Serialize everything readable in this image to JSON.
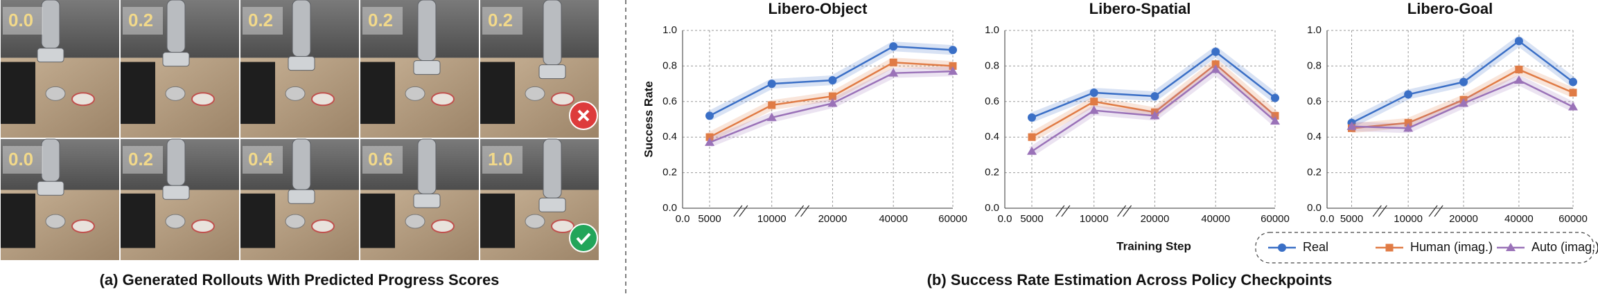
{
  "rollouts": {
    "rows": [
      {
        "scores": [
          "0.0",
          "0.2",
          "0.2",
          "0.2",
          "0.2"
        ],
        "outcome": "failure"
      },
      {
        "scores": [
          "0.0",
          "0.2",
          "0.4",
          "0.6",
          "1.0"
        ],
        "outcome": "success"
      }
    ],
    "caption": "(a) Generated Rollouts With Predicted Progress Scores"
  },
  "caption": "(b)  Success Rate Estimation Across Policy Checkpoints",
  "chart_data": [
    {
      "type": "line",
      "title": "Libero-Object",
      "y_label": "Success Rate",
      "x_origin_label": "0.0",
      "categories": [
        "5000",
        "10000",
        "20000",
        "40000",
        "60000"
      ],
      "ylim": [
        0,
        1
      ],
      "yticks": [
        {
          "value": 0,
          "label": "0.0"
        },
        {
          "value": 0.2,
          "label": "0.2"
        },
        {
          "value": 0.4,
          "label": "0.4"
        },
        {
          "value": 0.6,
          "label": "0.6"
        },
        {
          "value": 0.8,
          "label": "0.8"
        },
        {
          "value": 1,
          "label": "1.0"
        }
      ],
      "grid": true,
      "series": [
        {
          "name": "Real",
          "color": "#3a6fc6",
          "marker": "circle",
          "values": [
            0.52,
            0.7,
            0.72,
            0.91,
            0.89
          ]
        },
        {
          "name": "Human (imag.)",
          "color": "#e07b45",
          "marker": "square",
          "values": [
            0.4,
            0.58,
            0.63,
            0.82,
            0.8
          ]
        },
        {
          "name": "Auto (imag.)",
          "color": "#9a72b8",
          "marker": "triangle",
          "values": [
            0.37,
            0.51,
            0.59,
            0.76,
            0.77
          ]
        }
      ]
    },
    {
      "type": "line",
      "title": "Libero-Spatial",
      "x_label": "Training Step",
      "x_origin_label": "0.0",
      "categories": [
        "5000",
        "10000",
        "20000",
        "40000",
        "60000"
      ],
      "ylim": [
        0,
        1
      ],
      "yticks": [
        {
          "value": 0,
          "label": "0.0"
        },
        {
          "value": 0.2,
          "label": "0.2"
        },
        {
          "value": 0.4,
          "label": "0.4"
        },
        {
          "value": 0.6,
          "label": "0.6"
        },
        {
          "value": 0.8,
          "label": "0.8"
        },
        {
          "value": 1,
          "label": "1.0"
        }
      ],
      "grid": true,
      "series": [
        {
          "name": "Real",
          "color": "#3a6fc6",
          "marker": "circle",
          "values": [
            0.51,
            0.65,
            0.63,
            0.88,
            0.62
          ]
        },
        {
          "name": "Human (imag.)",
          "color": "#e07b45",
          "marker": "square",
          "values": [
            0.4,
            0.6,
            0.54,
            0.81,
            0.52
          ]
        },
        {
          "name": "Auto (imag.)",
          "color": "#9a72b8",
          "marker": "triangle",
          "values": [
            0.32,
            0.55,
            0.52,
            0.78,
            0.49
          ]
        }
      ]
    },
    {
      "type": "line",
      "title": "Libero-Goal",
      "x_origin_label": "0.0",
      "categories": [
        "5000",
        "10000",
        "20000",
        "40000",
        "60000"
      ],
      "ylim": [
        0,
        1
      ],
      "yticks": [
        {
          "value": 0,
          "label": "0.0"
        },
        {
          "value": 0.2,
          "label": "0.2"
        },
        {
          "value": 0.4,
          "label": "0.4"
        },
        {
          "value": 0.6,
          "label": "0.6"
        },
        {
          "value": 0.8,
          "label": "0.8"
        },
        {
          "value": 1,
          "label": "1.0"
        }
      ],
      "grid": true,
      "series": [
        {
          "name": "Real",
          "color": "#3a6fc6",
          "marker": "circle",
          "values": [
            0.48,
            0.64,
            0.71,
            0.94,
            0.71
          ]
        },
        {
          "name": "Human (imag.)",
          "color": "#e07b45",
          "marker": "square",
          "values": [
            0.45,
            0.48,
            0.61,
            0.78,
            0.65
          ]
        },
        {
          "name": "Auto (imag.)",
          "color": "#9a72b8",
          "marker": "triangle",
          "values": [
            0.46,
            0.45,
            0.59,
            0.72,
            0.57
          ]
        }
      ]
    }
  ]
}
